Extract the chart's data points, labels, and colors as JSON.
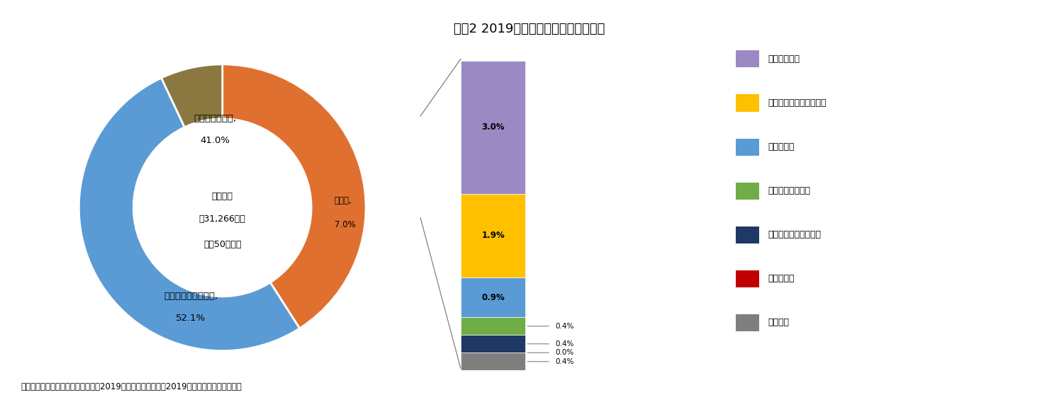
{
  "title": "図表2 2019年度住宅公積金支出の内訳",
  "donut_values": [
    41.0,
    52.1,
    7.0
  ],
  "donut_colors": [
    "#E07030",
    "#5B9BD5",
    "#8B7840"
  ],
  "donut_label1": "住宅ローン貸出,",
  "donut_pct1": "41.0%",
  "donut_label2": "個人による引き出し,",
  "donut_pct2": "52.1%",
  "donut_label3": "その他,",
  "donut_pct3": "7.0%",
  "donut_center_line1": "支出総額",
  "donut_center_line2": "約31,266億元",
  "donut_center_line3": "（約50兆円）",
  "bar_values": [
    3.0,
    1.9,
    0.9,
    0.4,
    0.4,
    0.0,
    0.4
  ],
  "bar_colors": [
    "#9B89C4",
    "#FFC000",
    "#5B9BD5",
    "#70AD47",
    "#203864",
    "#C00000",
    "#7F7F7F"
  ],
  "bar_labels": [
    "3.0%",
    "1.9%",
    "0.9%",
    "0.4%",
    "0.4%",
    "0.0%",
    "0.4%"
  ],
  "legend_labels": [
    "利息の支払い",
    "公共賃貸住宅建設補助金",
    "貸倒引当金",
    "資産運用管理費用",
    "商業銀行委託手数料等",
    "国債の購入",
    "人件費等"
  ],
  "legend_colors": [
    "#9B89C4",
    "#FFC000",
    "#5B9BD5",
    "#70AD47",
    "#203864",
    "#C00000",
    "#7F7F7F"
  ],
  "footnote": "（資料）住宅と都市農村建設部等（2019）「全国住宅公積金2019年度報告」を基に作成。",
  "background_color": "#FFFFFF"
}
